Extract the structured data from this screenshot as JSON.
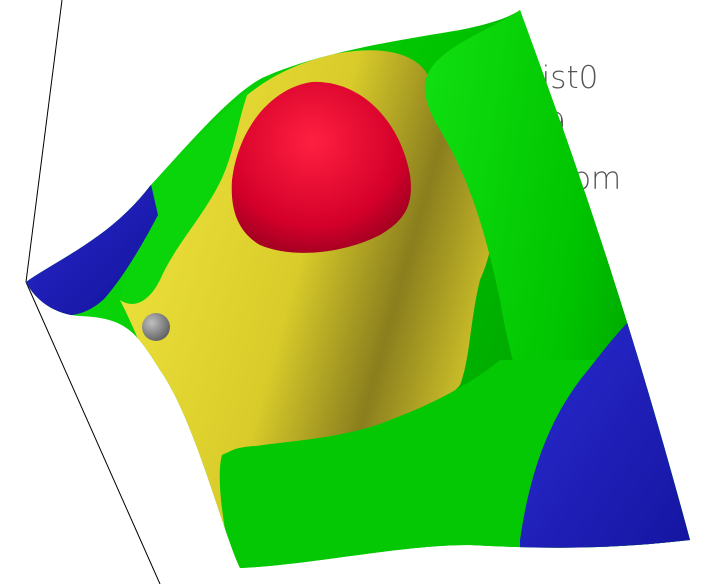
{
  "scene": {
    "background": "#ffffff",
    "axis_line_color": "#000000",
    "overlay_labels": [
      "dist0",
      "9",
      "rom"
    ],
    "overlay_label_color": "#555555",
    "contour_colors": {
      "low": "#1a1aa8",
      "mid_low": "#00c800",
      "mid_high": "#e6d832",
      "high": "#dc0a32"
    },
    "marker_color": "#808080"
  }
}
